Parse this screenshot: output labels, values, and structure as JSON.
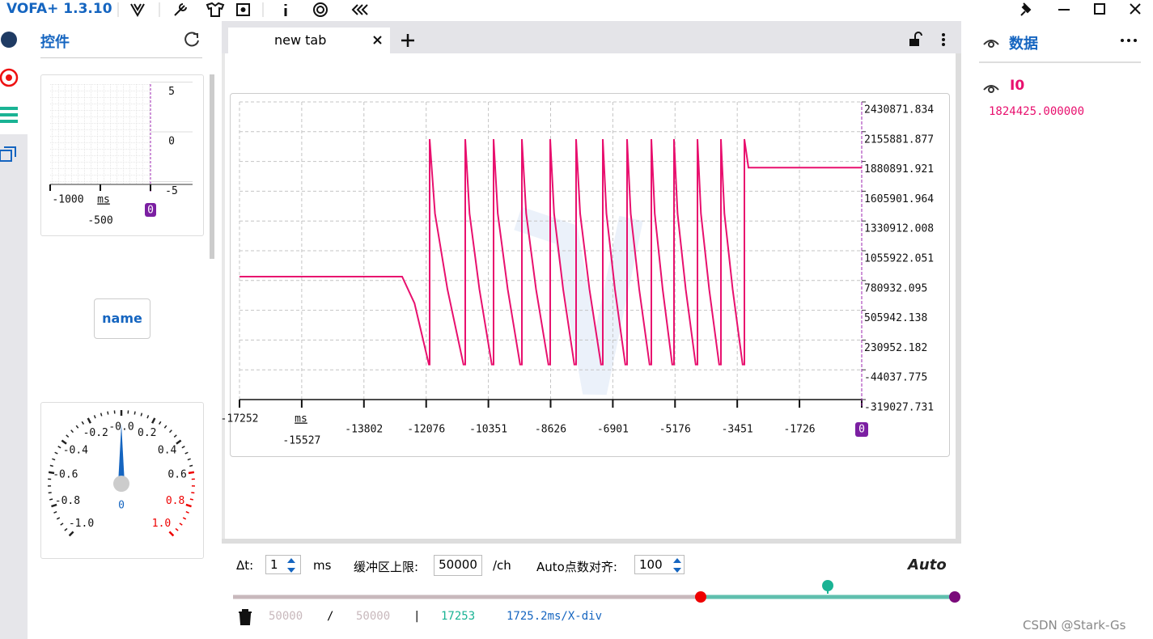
{
  "title_bar": {
    "app_name": "VOFA+ 1.3.10"
  },
  "controls_panel": {
    "title": "控件",
    "mini_chart": {
      "yticks": [
        5,
        0,
        -5
      ],
      "xticks": [
        -1000,
        -500,
        0
      ],
      "x_unit": "ms"
    },
    "button": "name",
    "gauge": {
      "labels": [
        "-1.0",
        "-0.8",
        "-0.6",
        "-0.4",
        "-0.2",
        "-0.0",
        "0.2",
        "0.4",
        "0.6",
        "0.8",
        "1.0"
      ],
      "value": 0
    }
  },
  "tab": {
    "label": "new tab"
  },
  "plot": {
    "x_unit": "ms",
    "color": "#e8106e",
    "xlim": [
      -17252,
      0
    ],
    "ylim": [
      -319027.731,
      2430871.834
    ],
    "xticks": [
      -17252,
      -15527,
      -13802,
      -12076,
      -10351,
      -8626,
      -6901,
      -5176,
      -3451,
      -1726,
      0
    ],
    "yticks": [
      2430871.834,
      2155881.877,
      1880891.921,
      1605901.964,
      1330912.008,
      1055922.051,
      780932.095,
      505942.138,
      230952.182,
      -44037.775,
      -319027.731
    ],
    "x": [
      -17252,
      -12743,
      -12400,
      -12000,
      -11980,
      -11980,
      -11832,
      -11487,
      -11043,
      -10993,
      -10993,
      -10875,
      -10601,
      -10258,
      -10208,
      -10208,
      -10090,
      -9815,
      -9472,
      -9422,
      -9422,
      -9304,
      -9030,
      -8687,
      -8637,
      -8637,
      -8529,
      -8278,
      -7969,
      -7919,
      -7919,
      -7808,
      -7549,
      -7229,
      -7179,
      -7179,
      -7078,
      -6843,
      -6556,
      -6506,
      -6506,
      -6405,
      -6170,
      -5883,
      -5833,
      -5833,
      -5739,
      -5519,
      -5255,
      -5205,
      -5205,
      -5107,
      -4880,
      -4604,
      -4554,
      -4554,
      -4457,
      -4229,
      -3954,
      -3904,
      -3904,
      -3806,
      -3578,
      -3303,
      -3253,
      -3253,
      -3140,
      0
    ],
    "values": [
      816800,
      816800,
      570200,
      5000,
      5000,
      2087100,
      1400000,
      700000,
      5000,
      5000,
      2087100,
      1400000,
      700000,
      5000,
      5000,
      2087100,
      1400000,
      700000,
      5000,
      5000,
      2087100,
      1400000,
      700000,
      5000,
      5000,
      2087100,
      1400000,
      700000,
      5000,
      5000,
      2087100,
      1400000,
      700000,
      5000,
      5000,
      2087100,
      1400000,
      700000,
      5000,
      5000,
      2087100,
      1400000,
      700000,
      5000,
      5000,
      2087100,
      1400000,
      700000,
      5000,
      5000,
      2087100,
      1400000,
      700000,
      5000,
      5000,
      2087100,
      1400000,
      700000,
      5000,
      5000,
      2087100,
      1400000,
      700000,
      5000,
      5000,
      2087100,
      1824425,
      1824425
    ]
  },
  "data_panel": {
    "title": "数据",
    "channel": "I0",
    "value": "1824425.000000"
  },
  "settings": {
    "dt_label": "Δt:",
    "dt": 1,
    "dt_unit": "ms",
    "buffer_label": "缓冲区上限:",
    "buffer": 50000,
    "buffer_unit": "/ch",
    "align_label": "Auto点数对齐:",
    "align": 100,
    "mode": "Auto"
  },
  "status": {
    "used": 50000,
    "separator": "/",
    "total": 50000,
    "divider": "|",
    "points": 17253,
    "scale": "1725.2ms/X-div"
  },
  "watermark": "CSDN @Stark-Gs"
}
